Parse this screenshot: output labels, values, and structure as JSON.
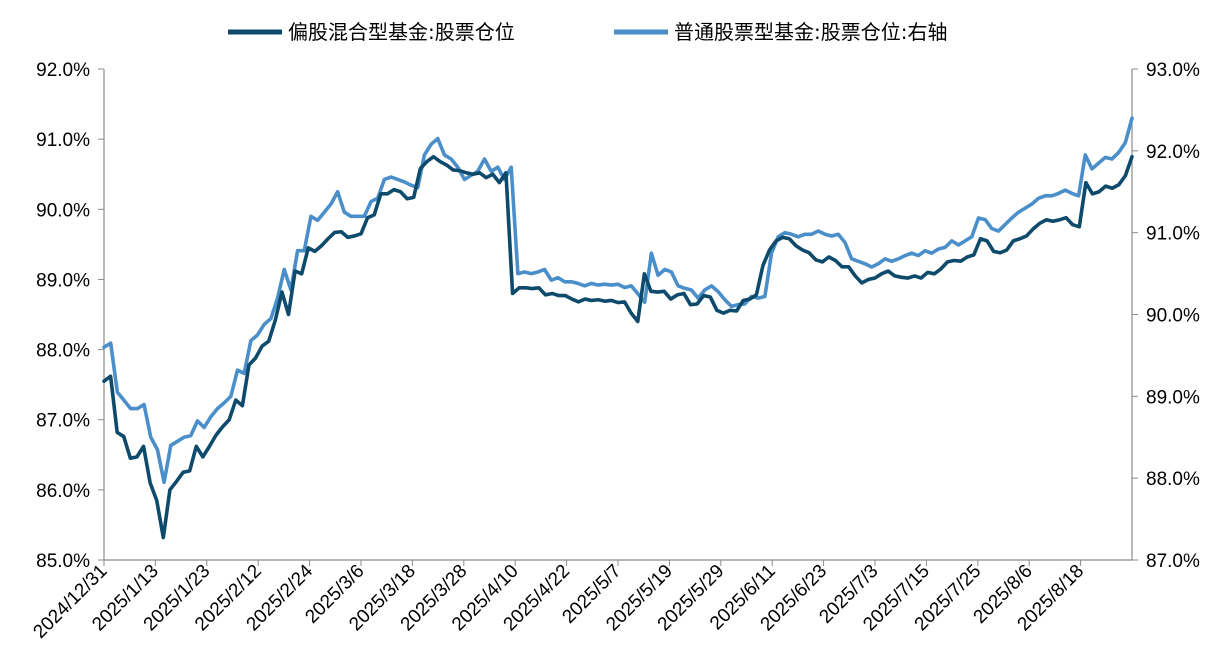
{
  "chart_data": {
    "type": "line",
    "colors": {
      "series1": "#0d4a6b",
      "series2": "#4a8fc9",
      "axis": "#8c8c8c"
    },
    "legend_position": "top",
    "grid": false,
    "x_tick_labels": [
      "2024/12/31",
      "2025/1/13",
      "2025/1/23",
      "2025/2/12",
      "2025/2/24",
      "2025/3/6",
      "2025/3/18",
      "2025/3/28",
      "2025/4/10",
      "2025/4/22",
      "2025/5/7",
      "2025/5/19",
      "2025/5/29",
      "2025/6/11",
      "2025/6/23",
      "2025/7/3",
      "2025/7/15",
      "2025/7/25",
      "2025/8/6",
      "2025/8/18"
    ],
    "y_left": {
      "ticks": [
        "85.0%",
        "86.0%",
        "87.0%",
        "88.0%",
        "89.0%",
        "90.0%",
        "91.0%",
        "92.0%"
      ],
      "ylim": [
        85.0,
        92.0
      ]
    },
    "y_right": {
      "ticks": [
        "87.0%",
        "88.0%",
        "89.0%",
        "90.0%",
        "91.0%",
        "92.0%",
        "93.0%"
      ],
      "ylim": [
        87.0,
        93.0
      ]
    },
    "series": [
      {
        "name": "偏股混合型基金:股票仓位",
        "axis": "left",
        "values": [
          87.55,
          87.62,
          86.82,
          86.76,
          86.45,
          86.47,
          86.62,
          86.1,
          85.85,
          85.32,
          86.0,
          86.12,
          86.25,
          86.27,
          86.62,
          86.47,
          86.62,
          86.78,
          86.9,
          87.0,
          87.28,
          87.2,
          87.78,
          87.88,
          88.05,
          88.12,
          88.42,
          88.82,
          88.5,
          89.12,
          89.08,
          89.45,
          89.4,
          89.48,
          89.58,
          89.67,
          89.68,
          89.6,
          89.62,
          89.65,
          89.88,
          89.92,
          90.22,
          90.22,
          90.28,
          90.25,
          90.15,
          90.17,
          90.58,
          90.68,
          90.75,
          90.68,
          90.63,
          90.56,
          90.55,
          90.52,
          90.5,
          90.52,
          90.45,
          90.5,
          90.38,
          90.52,
          88.8,
          88.88,
          88.88,
          88.87,
          88.88,
          88.78,
          88.8,
          88.77,
          88.77,
          88.72,
          88.68,
          88.72,
          88.7,
          88.71,
          88.69,
          88.7,
          88.67,
          88.68,
          88.52,
          88.4,
          89.08,
          88.83,
          88.82,
          88.83,
          88.72,
          88.78,
          88.8,
          88.64,
          88.65,
          88.77,
          88.75,
          88.56,
          88.52,
          88.56,
          88.55,
          88.7,
          88.72,
          88.78,
          89.2,
          89.42,
          89.55,
          89.6,
          89.58,
          89.48,
          89.42,
          89.38,
          89.28,
          89.25,
          89.32,
          89.27,
          89.18,
          89.18,
          89.05,
          88.95,
          89.0,
          89.02,
          89.08,
          89.12,
          89.05,
          89.03,
          89.02,
          89.05,
          89.02,
          89.1,
          89.08,
          89.15,
          89.25,
          89.27,
          89.26,
          89.32,
          89.35,
          89.58,
          89.55,
          89.4,
          89.38,
          89.42,
          89.55,
          89.58,
          89.62,
          89.72,
          89.8,
          89.85,
          89.83,
          89.85,
          89.88,
          89.78,
          89.75,
          90.38,
          90.22,
          90.25,
          90.33,
          90.3,
          90.35,
          90.48,
          90.75
        ]
      },
      {
        "name": "普通股票型基金:股票仓位:右轴",
        "axis": "right",
        "values": [
          89.6,
          89.65,
          89.05,
          88.95,
          88.85,
          88.85,
          88.9,
          88.5,
          88.35,
          87.95,
          88.4,
          88.45,
          88.5,
          88.52,
          88.7,
          88.62,
          88.75,
          88.85,
          88.92,
          89.0,
          89.32,
          89.28,
          89.68,
          89.75,
          89.88,
          89.95,
          90.2,
          90.55,
          90.3,
          90.78,
          90.78,
          91.2,
          91.15,
          91.25,
          91.35,
          91.5,
          91.25,
          91.2,
          91.2,
          91.2,
          91.38,
          91.42,
          91.65,
          91.68,
          91.65,
          91.62,
          91.58,
          91.55,
          91.95,
          92.08,
          92.15,
          91.95,
          91.9,
          91.8,
          91.65,
          91.7,
          91.75,
          91.9,
          91.75,
          91.8,
          91.65,
          91.8,
          90.5,
          90.52,
          90.5,
          90.52,
          90.55,
          90.42,
          90.45,
          90.4,
          90.4,
          90.38,
          90.35,
          90.38,
          90.36,
          90.37,
          90.36,
          90.37,
          90.33,
          90.35,
          90.25,
          90.15,
          90.75,
          90.48,
          90.55,
          90.52,
          90.35,
          90.32,
          90.3,
          90.2,
          90.3,
          90.35,
          90.28,
          90.18,
          90.1,
          90.12,
          90.13,
          90.22,
          90.2,
          90.22,
          90.75,
          90.95,
          91.0,
          90.98,
          90.95,
          90.98,
          90.98,
          91.02,
          90.98,
          90.96,
          90.98,
          90.88,
          90.68,
          90.65,
          90.62,
          90.58,
          90.62,
          90.68,
          90.65,
          90.68,
          90.72,
          90.75,
          90.72,
          90.78,
          90.75,
          90.8,
          90.82,
          90.9,
          90.85,
          90.9,
          90.95,
          91.18,
          91.16,
          91.05,
          91.02,
          91.1,
          91.18,
          91.25,
          91.3,
          91.35,
          91.42,
          91.45,
          91.45,
          91.48,
          91.52,
          91.48,
          91.45,
          91.95,
          91.78,
          91.85,
          91.92,
          91.9,
          91.98,
          92.1,
          92.4
        ]
      }
    ]
  }
}
